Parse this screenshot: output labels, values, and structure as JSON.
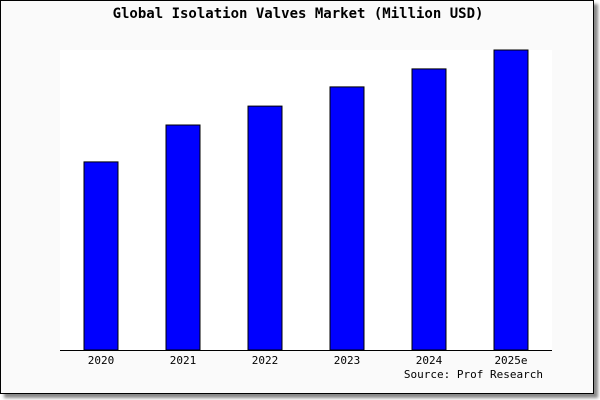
{
  "chart_data": {
    "type": "bar",
    "title": "Global Isolation Valves Market (Million USD)",
    "categories": [
      "2020",
      "2021",
      "2022",
      "2023",
      "2024",
      "2025e"
    ],
    "values": [
      62.7,
      75.0,
      81.3,
      87.7,
      93.7,
      100
    ],
    "value_note_units": "relative (no y-axis printed)",
    "xlabel": "",
    "ylabel": "",
    "ylim": [
      0,
      100
    ],
    "grid": false,
    "bar_color": "#0000ff",
    "source": "Source: Prof Research"
  }
}
